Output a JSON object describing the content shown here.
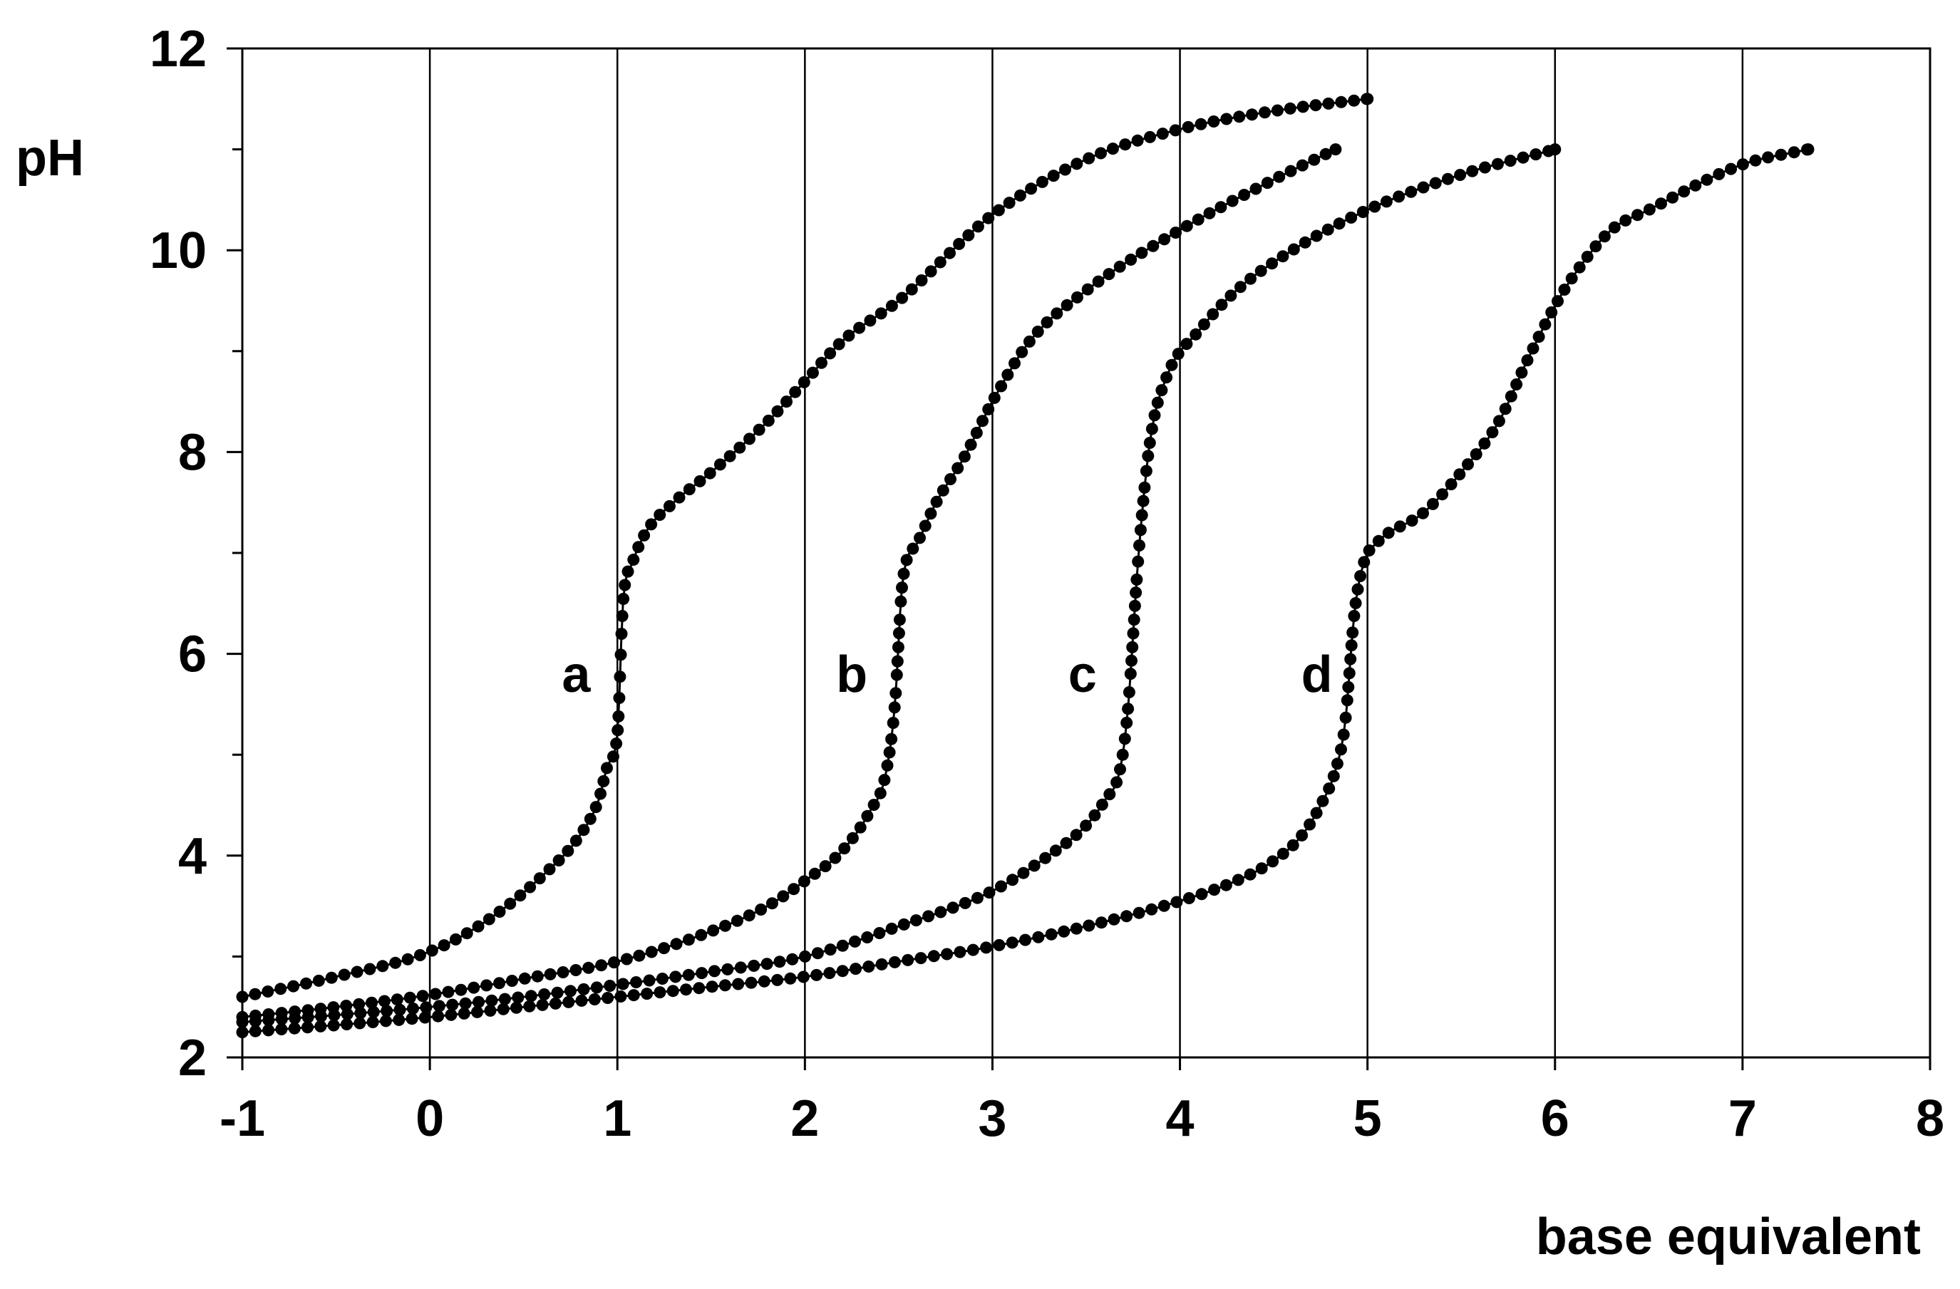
{
  "chart_data": {
    "type": "scatter",
    "title": "",
    "xlabel": "base equivalent",
    "ylabel": "pH",
    "xlim": [
      -1,
      8
    ],
    "ylim": [
      2,
      12
    ],
    "x_ticks": [
      -1,
      0,
      1,
      2,
      3,
      4,
      5,
      6,
      7,
      8
    ],
    "x_tick_labels": [
      "-1",
      "0",
      "1",
      "2",
      "3",
      "4",
      "5",
      "6",
      "7",
      "8"
    ],
    "y_ticks": [
      2,
      4,
      6,
      8,
      10,
      12
    ],
    "y_tick_labels": [
      "2",
      "4",
      "6",
      "8",
      "10",
      "12"
    ],
    "y_minor_step": 1,
    "grid": {
      "vertical": true,
      "horizontal": false
    },
    "legend": "none",
    "marker_color": "#000000",
    "series": [
      {
        "label": "a",
        "label_pos": [
          0.78,
          5.8
        ],
        "end_x": 5.0,
        "points": [
          [
            -1.0,
            2.6
          ],
          [
            -0.5,
            2.8
          ],
          [
            0.0,
            3.05
          ],
          [
            0.3,
            3.35
          ],
          [
            0.6,
            3.8
          ],
          [
            0.8,
            4.2
          ],
          [
            0.9,
            4.55
          ],
          [
            0.95,
            4.9
          ],
          [
            1.0,
            5.2
          ],
          [
            1.03,
            6.5
          ],
          [
            1.08,
            6.9
          ],
          [
            1.15,
            7.2
          ],
          [
            1.3,
            7.5
          ],
          [
            1.5,
            7.8
          ],
          [
            1.8,
            8.3
          ],
          [
            2.0,
            8.7
          ],
          [
            2.2,
            9.1
          ],
          [
            2.5,
            9.5
          ],
          [
            3.0,
            10.35
          ],
          [
            3.5,
            10.9
          ],
          [
            4.0,
            11.2
          ],
          [
            4.5,
            11.38
          ],
          [
            5.0,
            11.5
          ]
        ]
      },
      {
        "label": "b",
        "label_pos": [
          2.25,
          5.8
        ],
        "end_x": 4.83,
        "points": [
          [
            -1.0,
            2.4
          ],
          [
            -0.5,
            2.5
          ],
          [
            0.0,
            2.62
          ],
          [
            0.5,
            2.78
          ],
          [
            1.0,
            2.95
          ],
          [
            1.5,
            3.25
          ],
          [
            1.8,
            3.5
          ],
          [
            2.0,
            3.75
          ],
          [
            2.2,
            4.05
          ],
          [
            2.35,
            4.45
          ],
          [
            2.43,
            4.8
          ],
          [
            2.48,
            5.5
          ],
          [
            2.52,
            6.7
          ],
          [
            2.6,
            7.1
          ],
          [
            2.7,
            7.5
          ],
          [
            2.85,
            7.95
          ],
          [
            3.0,
            8.5
          ],
          [
            3.2,
            9.1
          ],
          [
            3.5,
            9.6
          ],
          [
            4.0,
            10.2
          ],
          [
            4.5,
            10.7
          ],
          [
            4.83,
            11.0
          ]
        ]
      },
      {
        "label": "c",
        "label_pos": [
          3.48,
          5.8
        ],
        "end_x": 6.0,
        "points": [
          [
            -1.0,
            2.35
          ],
          [
            -0.5,
            2.42
          ],
          [
            0.0,
            2.5
          ],
          [
            0.5,
            2.6
          ],
          [
            1.0,
            2.72
          ],
          [
            1.5,
            2.85
          ],
          [
            2.0,
            3.0
          ],
          [
            2.5,
            3.3
          ],
          [
            3.0,
            3.65
          ],
          [
            3.3,
            4.0
          ],
          [
            3.5,
            4.3
          ],
          [
            3.6,
            4.55
          ],
          [
            3.68,
            4.85
          ],
          [
            3.72,
            5.4
          ],
          [
            3.78,
            7.0
          ],
          [
            3.84,
            8.1
          ],
          [
            3.93,
            8.75
          ],
          [
            4.1,
            9.2
          ],
          [
            4.3,
            9.6
          ],
          [
            4.6,
            10.0
          ],
          [
            5.0,
            10.4
          ],
          [
            5.5,
            10.75
          ],
          [
            6.0,
            11.0
          ]
        ]
      },
      {
        "label": "d",
        "label_pos": [
          4.73,
          5.8
        ],
        "end_x": 7.35,
        "points": [
          [
            -1.0,
            2.25
          ],
          [
            -0.5,
            2.32
          ],
          [
            0.0,
            2.4
          ],
          [
            0.5,
            2.5
          ],
          [
            1.0,
            2.6
          ],
          [
            1.5,
            2.7
          ],
          [
            2.0,
            2.8
          ],
          [
            2.5,
            2.95
          ],
          [
            3.0,
            3.1
          ],
          [
            3.5,
            3.3
          ],
          [
            4.0,
            3.55
          ],
          [
            4.3,
            3.75
          ],
          [
            4.5,
            3.95
          ],
          [
            4.65,
            4.2
          ],
          [
            4.75,
            4.5
          ],
          [
            4.83,
            4.85
          ],
          [
            4.88,
            5.3
          ],
          [
            4.93,
            6.4
          ],
          [
            4.98,
            6.9
          ],
          [
            5.05,
            7.1
          ],
          [
            5.3,
            7.4
          ],
          [
            5.5,
            7.8
          ],
          [
            5.7,
            8.3
          ],
          [
            5.85,
            8.9
          ],
          [
            6.0,
            9.45
          ],
          [
            6.1,
            9.75
          ],
          [
            6.3,
            10.2
          ],
          [
            6.5,
            10.4
          ],
          [
            7.0,
            10.85
          ],
          [
            7.35,
            11.0
          ]
        ]
      }
    ]
  }
}
